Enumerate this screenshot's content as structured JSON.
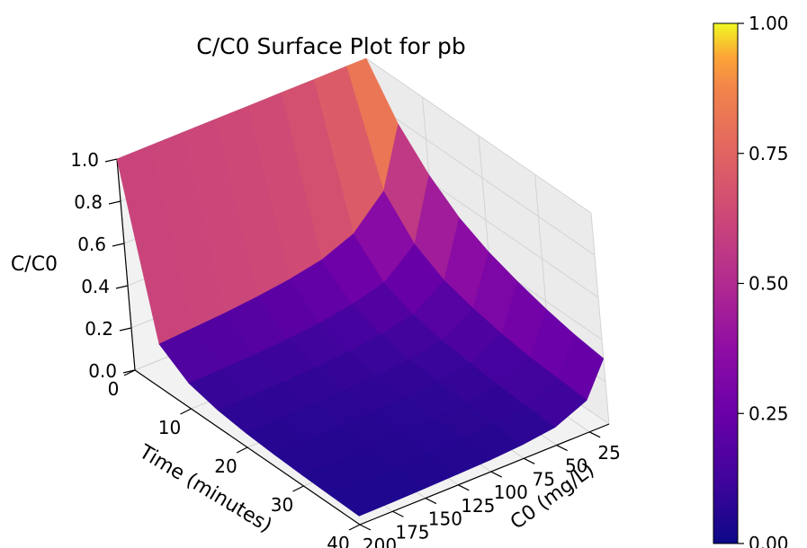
{
  "chart_data": {
    "type": "surface",
    "title": "C/C0 Surface Plot for pb",
    "xlabel": "Time (minutes)",
    "ylabel": "C0 (mg/L)",
    "zlabel": "C/C0",
    "x_ticks": [
      "0",
      "10",
      "20",
      "30",
      "40"
    ],
    "y_ticks": [
      "25",
      "50",
      "75",
      "100",
      "125",
      "150",
      "175",
      "200"
    ],
    "z_ticks": [
      "0.0",
      "0.2",
      "0.4",
      "0.6",
      "0.8",
      "1.0"
    ],
    "xlim": [
      0,
      40
    ],
    "ylim": [
      10,
      200
    ],
    "zlim": [
      0,
      1
    ],
    "time": [
      0,
      5,
      10,
      15,
      20,
      25,
      30,
      35,
      40
    ],
    "c0": [
      10,
      25,
      50,
      75,
      100,
      125,
      150,
      175,
      200
    ],
    "values": [
      [
        1.0,
        0.78,
        0.63,
        0.52,
        0.45,
        0.4,
        0.36,
        0.33,
        0.31
      ],
      [
        1.0,
        0.5,
        0.34,
        0.26,
        0.22,
        0.19,
        0.17,
        0.16,
        0.15
      ],
      [
        1.0,
        0.36,
        0.22,
        0.16,
        0.13,
        0.115,
        0.1,
        0.09,
        0.085
      ],
      [
        1.0,
        0.3,
        0.18,
        0.13,
        0.1,
        0.09,
        0.08,
        0.07,
        0.065
      ],
      [
        1.0,
        0.27,
        0.155,
        0.11,
        0.09,
        0.075,
        0.065,
        0.06,
        0.055
      ],
      [
        1.0,
        0.25,
        0.14,
        0.1,
        0.08,
        0.068,
        0.06,
        0.055,
        0.05
      ],
      [
        1.0,
        0.235,
        0.13,
        0.092,
        0.074,
        0.063,
        0.055,
        0.05,
        0.046
      ],
      [
        1.0,
        0.225,
        0.125,
        0.088,
        0.07,
        0.06,
        0.052,
        0.047,
        0.043
      ],
      [
        1.0,
        0.215,
        0.12,
        0.085,
        0.067,
        0.057,
        0.05,
        0.045,
        0.041
      ]
    ],
    "colormap": "plasma",
    "colorbar_ticks": [
      "0.00",
      "0.25",
      "0.50",
      "0.75",
      "1.00"
    ],
    "colorbar_range": [
      0,
      1
    ],
    "grid": true
  }
}
